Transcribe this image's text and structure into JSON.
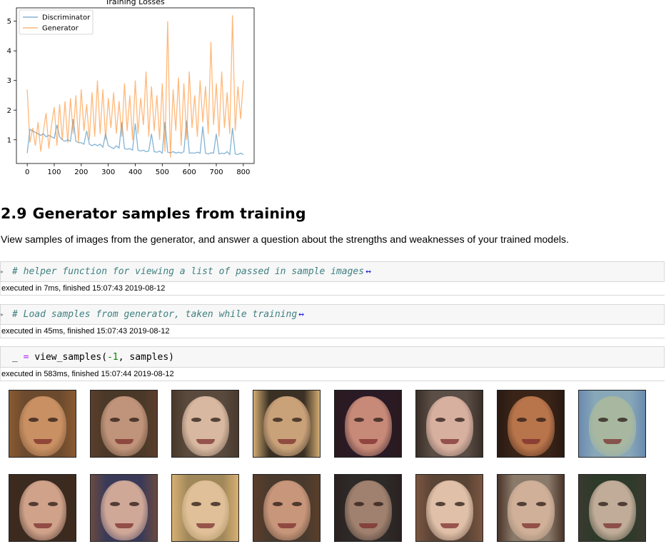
{
  "chart_data": {
    "type": "line",
    "title": "Training Losses",
    "x_ticks": [
      0,
      100,
      200,
      300,
      400,
      500,
      600,
      700,
      800
    ],
    "y_ticks": [
      1,
      2,
      3,
      4,
      5
    ],
    "xlim": [
      -40,
      840
    ],
    "ylim": [
      0.2,
      5.45
    ],
    "legend_position": "top-left",
    "series": [
      {
        "name": "Discriminator",
        "color": "#1f77b4",
        "x": [
          0,
          10,
          20,
          30,
          40,
          50,
          60,
          70,
          80,
          90,
          100,
          110,
          120,
          130,
          140,
          150,
          160,
          170,
          180,
          190,
          200,
          210,
          220,
          230,
          240,
          250,
          260,
          270,
          280,
          290,
          300,
          310,
          320,
          330,
          340,
          350,
          360,
          370,
          380,
          390,
          400,
          410,
          420,
          430,
          440,
          450,
          460,
          470,
          480,
          490,
          500,
          510,
          520,
          530,
          540,
          550,
          560,
          570,
          580,
          590,
          600,
          610,
          620,
          630,
          640,
          650,
          660,
          670,
          680,
          690,
          700,
          710,
          720,
          730,
          740,
          750,
          760,
          770,
          780,
          790,
          800
        ],
        "values": [
          0.55,
          1.35,
          1.3,
          1.25,
          1.2,
          1.15,
          1.2,
          1.1,
          1.15,
          1.1,
          1.05,
          1.5,
          1.1,
          1.0,
          0.95,
          1.0,
          0.95,
          1.7,
          0.95,
          0.9,
          0.9,
          0.85,
          1.3,
          0.85,
          0.8,
          0.85,
          0.8,
          0.85,
          0.75,
          1.2,
          0.8,
          0.75,
          0.7,
          0.8,
          0.72,
          1.6,
          0.7,
          0.68,
          0.7,
          0.65,
          1.55,
          0.65,
          0.62,
          0.65,
          0.6,
          0.62,
          1.2,
          0.6,
          0.58,
          0.62,
          0.55,
          1.6,
          0.58,
          0.56,
          0.6,
          0.55,
          0.58,
          0.55,
          0.6,
          1.65,
          0.55,
          0.56,
          0.55,
          0.58,
          0.55,
          1.45,
          0.55,
          0.52,
          0.56,
          0.55,
          1.2,
          0.52,
          0.55,
          0.53,
          0.6,
          0.5,
          1.4,
          0.52,
          0.5,
          0.55,
          0.5
        ]
      },
      {
        "name": "Generator",
        "color": "#ff7f0e",
        "x": [
          0,
          10,
          20,
          30,
          40,
          50,
          60,
          70,
          80,
          90,
          100,
          110,
          120,
          130,
          140,
          150,
          160,
          170,
          180,
          190,
          200,
          210,
          220,
          230,
          240,
          250,
          260,
          270,
          280,
          290,
          300,
          310,
          320,
          330,
          340,
          350,
          360,
          370,
          380,
          390,
          400,
          410,
          420,
          430,
          440,
          450,
          460,
          470,
          480,
          490,
          500,
          510,
          520,
          530,
          540,
          550,
          560,
          570,
          580,
          590,
          600,
          610,
          620,
          630,
          640,
          650,
          660,
          670,
          680,
          690,
          700,
          710,
          720,
          730,
          740,
          750,
          760,
          770,
          780,
          790,
          800
        ],
        "values": [
          2.7,
          0.9,
          1.4,
          0.8,
          1.6,
          0.6,
          1.3,
          1.9,
          0.7,
          1.5,
          2.1,
          0.8,
          2.2,
          1.0,
          2.3,
          0.9,
          2.4,
          1.2,
          2.5,
          0.9,
          2.7,
          1.3,
          2.2,
          1.0,
          2.6,
          1.1,
          3.0,
          1.2,
          2.7,
          1.0,
          2.4,
          1.4,
          2.6,
          1.2,
          2.3,
          1.1,
          2.9,
          1.3,
          2.5,
          1.0,
          3.0,
          1.2,
          2.4,
          1.5,
          3.3,
          1.1,
          2.8,
          1.3,
          2.5,
          1.0,
          2.9,
          0.6,
          5.0,
          0.4,
          2.7,
          1.3,
          3.1,
          0.8,
          2.9,
          1.0,
          3.3,
          1.4,
          2.5,
          1.1,
          3.0,
          1.6,
          2.8,
          1.2,
          4.3,
          1.5,
          2.9,
          1.1,
          3.3,
          1.4,
          2.6,
          1.2,
          5.2,
          1.3,
          2.8,
          1.7,
          3.0
        ]
      }
    ]
  },
  "section": {
    "number": "2.9",
    "title": "Generator samples from training",
    "description": "View samples of images from the generator, and answer a question about the strengths and weaknesses of your trained models."
  },
  "cells": [
    {
      "code": "# helper function for viewing a list of passed in sample images",
      "ellipsis": "↔",
      "exec": "executed in 7ms, finished 15:07:43 2019-08-12"
    },
    {
      "code": "# Load samples from generator, taken while training",
      "ellipsis": "↔",
      "exec": "executed in 45ms, finished 15:07:43 2019-08-12"
    },
    {
      "code_var": "_",
      "code_eq": "=",
      "code_call": "view_samples(",
      "code_num": "-1",
      "code_rest": ", samples)",
      "exec": "executed in 583ms, finished 15:07:44 2019-08-12"
    }
  ],
  "sample_images": [
    {
      "bg": "#6b4a2e",
      "skin": "#c99063",
      "hair": "#8a5a30"
    },
    {
      "bg": "#4a3828",
      "skin": "#c0947a",
      "hair": "#5a3e2a"
    },
    {
      "bg": "#5a4a3e",
      "skin": "#d8b8a0",
      "hair": "#4a3a2e"
    },
    {
      "bg": "#3a3024",
      "skin": "#caa27a",
      "hair": "#d4ac72"
    },
    {
      "bg": "#2a1a26",
      "skin": "#c88a78",
      "hair": "#2a1a1e"
    },
    {
      "bg": "#5a4e46",
      "skin": "#d8b0a0",
      "hair": "#3a2e28"
    },
    {
      "bg": "#3a2418",
      "skin": "#b8744a",
      "hair": "#2a1a12"
    },
    {
      "bg": "#88a8b8",
      "skin": "#a8b8a0",
      "hair": "#6a8ab0"
    },
    {
      "bg": "#3a2a20",
      "skin": "#d0a28a",
      "hair": "#3e2a1e"
    },
    {
      "bg": "#3a3a58",
      "skin": "#d0a898",
      "hair": "#6a4a40"
    },
    {
      "bg": "#a0885a",
      "skin": "#e0c098",
      "hair": "#d8b074"
    },
    {
      "bg": "#4a3a2e",
      "skin": "#c8967a",
      "hair": "#5a3e2a"
    },
    {
      "bg": "#2e2a28",
      "skin": "#a0806e",
      "hair": "#2a2220"
    },
    {
      "bg": "#5a4436",
      "skin": "#e0c0a8",
      "hair": "#7a5640"
    },
    {
      "bg": "#8a7a6a",
      "skin": "#d0b098",
      "hair": "#4a3428"
    },
    {
      "bg": "#2e3a2a",
      "skin": "#c0ac98",
      "hair": "#3a3a30"
    }
  ]
}
